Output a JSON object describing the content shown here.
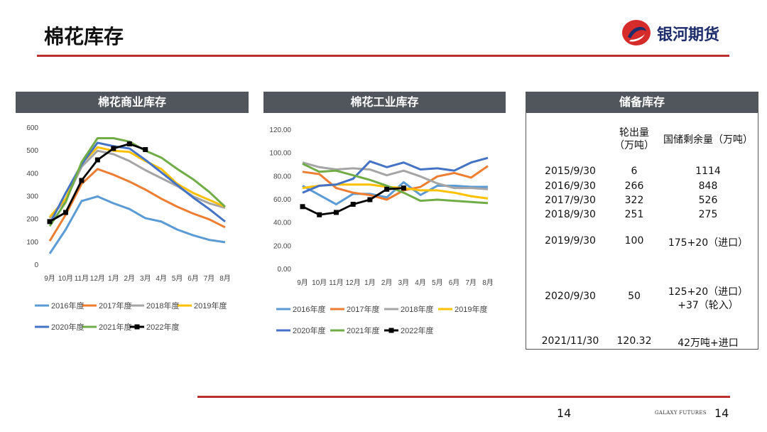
{
  "page": {
    "title": "棉花库存",
    "page_number": "14",
    "footer_brand": "GALAXY FUTURES",
    "footer_page": "14"
  },
  "logo": {
    "text": "银河期货",
    "colors": {
      "red": "#d62b2b",
      "blue": "#1e2d6b"
    }
  },
  "colors": {
    "panel_header": "#51565d",
    "accent_red": "#b8312f",
    "series": {
      "2016": "#5b9bd5",
      "2017": "#ed7d31",
      "2018": "#a5a5a5",
      "2019": "#ffc000",
      "2020": "#4472c4",
      "2021": "#70ad47",
      "2022": "#000000"
    }
  },
  "panels": {
    "commercial": {
      "title": "棉花商业库存"
    },
    "industrial": {
      "title": "棉花工业库存"
    },
    "reserve": {
      "title": "储备库存"
    }
  },
  "chart_data": [
    {
      "type": "line",
      "categories": [
        "9月",
        "10月",
        "11月",
        "12月",
        "1月",
        "2月",
        "3月",
        "4月",
        "5月",
        "6月",
        "7月",
        "8月"
      ],
      "ylim": [
        0,
        600
      ],
      "yticks": [
        "0",
        "100",
        "200",
        "300",
        "400",
        "500",
        "600"
      ],
      "grid": false,
      "legend": "bottom",
      "series": [
        {
          "name": "2016年度",
          "values": [
            50,
            155,
            280,
            300,
            270,
            245,
            205,
            190,
            155,
            130,
            110,
            100
          ]
        },
        {
          "name": "2017年度",
          "values": [
            105,
            220,
            355,
            420,
            395,
            365,
            330,
            290,
            255,
            225,
            200,
            165
          ]
        },
        {
          "name": "2018年度",
          "values": [
            205,
            285,
            430,
            500,
            485,
            455,
            415,
            380,
            345,
            300,
            270,
            250
          ]
        },
        {
          "name": "2019年度",
          "values": [
            210,
            290,
            445,
            515,
            500,
            495,
            455,
            420,
            355,
            315,
            285,
            255
          ]
        },
        {
          "name": "2020年度",
          "values": [
            180,
            315,
            440,
            535,
            520,
            510,
            460,
            405,
            350,
            295,
            245,
            190
          ]
        },
        {
          "name": "2021年度",
          "values": [
            170,
            275,
            450,
            555,
            555,
            540,
            500,
            470,
            420,
            375,
            320,
            255
          ]
        },
        {
          "name": "2022年度",
          "values": [
            190,
            230,
            370,
            460,
            510,
            530,
            505,
            null,
            null,
            null,
            null,
            null
          ]
        }
      ]
    },
    {
      "type": "line",
      "categories": [
        "9月",
        "10月",
        "11月",
        "12月",
        "1月",
        "2月",
        "3月",
        "4月",
        "5月",
        "6月",
        "7月",
        "8月"
      ],
      "ylim": [
        0,
        120
      ],
      "yticks": [
        "0.00",
        "20.00",
        "40.00",
        "60.00",
        "80.00",
        "100.00",
        "120.00"
      ],
      "grid": false,
      "legend": "bottom",
      "series": [
        {
          "name": "2016年度",
          "values": [
            72,
            64,
            56,
            65,
            65,
            62,
            75,
            64,
            72,
            72,
            71,
            71
          ]
        },
        {
          "name": "2017年度",
          "values": [
            84,
            82,
            70,
            66,
            64,
            60,
            68,
            71,
            80,
            83,
            79,
            89
          ]
        },
        {
          "name": "2018年度",
          "values": [
            92,
            88,
            86,
            87,
            86,
            81,
            85,
            80,
            74,
            70,
            70,
            69
          ]
        },
        {
          "name": "2019年度",
          "values": [
            70,
            72,
            73,
            73,
            73,
            71,
            70,
            68,
            68,
            66,
            63,
            61
          ]
        },
        {
          "name": "2020年度",
          "values": [
            66,
            72,
            73,
            78,
            93,
            88,
            92,
            86,
            87,
            85,
            92,
            96
          ]
        },
        {
          "name": "2021年度",
          "values": [
            91,
            84,
            85,
            81,
            77,
            72,
            66,
            59,
            60,
            59,
            58,
            57
          ]
        },
        {
          "name": "2022年度",
          "values": [
            54,
            47,
            49,
            56,
            60,
            69,
            70,
            null,
            null,
            null,
            null,
            null
          ]
        }
      ]
    }
  ],
  "reserve_table": {
    "headers": {
      "out_line1": "轮出量",
      "out_line2": "（万吨）",
      "remain": "国储剩余量（万吨）"
    },
    "rows": [
      {
        "date": "2015/9/30",
        "out": "6",
        "remain": "1114"
      },
      {
        "date": "2016/9/30",
        "out": "266",
        "remain": "848"
      },
      {
        "date": "2017/9/30",
        "out": "322",
        "remain": "526"
      },
      {
        "date": "2018/9/30",
        "out": "251",
        "remain": "275"
      },
      {
        "date": "2019/9/30",
        "out": "100",
        "remain": "175+20（进口）"
      },
      {
        "date": "2020/9/30",
        "out": "50",
        "remain": "125+20（进口）",
        "remain2": "+37（轮入）"
      },
      {
        "date": "2021/11/30",
        "out": "120.32",
        "remain": "42万吨+进口"
      }
    ]
  }
}
